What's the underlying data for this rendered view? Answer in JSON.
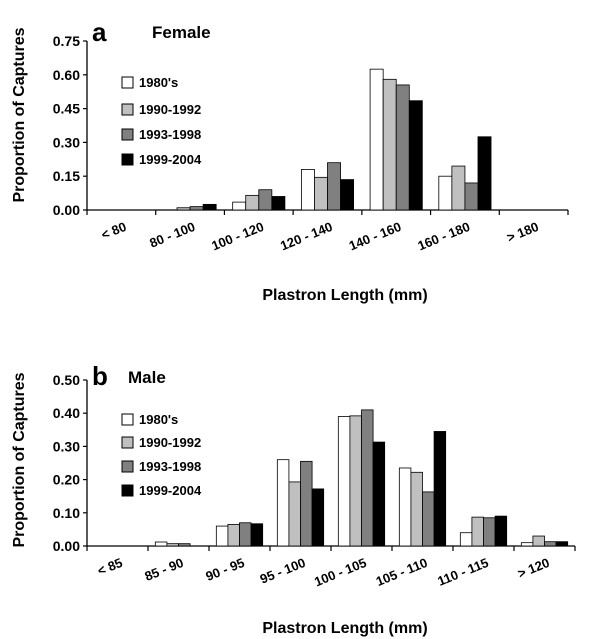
{
  "colors": {
    "1980s": "#ffffff",
    "1990-1992": "#c0c0c0",
    "1993-1998": "#808080",
    "1999-2004": "#000000"
  },
  "chart_data": [
    {
      "type": "bar",
      "panel": "a",
      "title": "Female",
      "xlabel": "Plastron Length (mm)",
      "ylabel": "Proportion of Captures",
      "ylim": [
        0,
        0.75
      ],
      "yticks": [
        "0.00",
        "0.15",
        "0.30",
        "0.45",
        "0.60",
        "0.75"
      ],
      "categories": [
        "< 80",
        "80 - 100",
        "100 - 120",
        "120 - 140",
        "140 - 160",
        "160 - 180",
        "> 180"
      ],
      "legend_position": "top-left",
      "series": [
        {
          "name": "1980's",
          "values": [
            0,
            0,
            0.035,
            0.18,
            0.625,
            0.15,
            0
          ]
        },
        {
          "name": "1990-1992",
          "values": [
            0,
            0.01,
            0.065,
            0.145,
            0.58,
            0.195,
            0
          ]
        },
        {
          "name": "1993-1998",
          "values": [
            0,
            0.015,
            0.09,
            0.21,
            0.555,
            0.12,
            0
          ]
        },
        {
          "name": "1999-2004",
          "values": [
            0,
            0.025,
            0.06,
            0.135,
            0.485,
            0.325,
            0
          ]
        }
      ]
    },
    {
      "type": "bar",
      "panel": "b",
      "title": "Male",
      "xlabel": "Plastron Length (mm)",
      "ylabel": "Proportion of Captures",
      "ylim": [
        0,
        0.5
      ],
      "yticks": [
        "0.00",
        "0.10",
        "0.20",
        "0.30",
        "0.40",
        "0.50"
      ],
      "categories": [
        "< 85",
        "85 - 90",
        "90 - 95",
        "95 - 100",
        "100 - 105",
        "105 - 110",
        "110 - 115",
        "> 120"
      ],
      "legend_position": "top-left",
      "series": [
        {
          "name": "1980's",
          "values": [
            0,
            0.012,
            0.06,
            0.26,
            0.39,
            0.235,
            0.04,
            0.01
          ]
        },
        {
          "name": "1990-1992",
          "values": [
            0,
            0.007,
            0.065,
            0.193,
            0.392,
            0.222,
            0.087,
            0.03
          ]
        },
        {
          "name": "1993-1998",
          "values": [
            0,
            0.007,
            0.07,
            0.255,
            0.41,
            0.163,
            0.085,
            0.013
          ]
        },
        {
          "name": "1999-2004",
          "values": [
            0,
            0,
            0.067,
            0.172,
            0.313,
            0.345,
            0.09,
            0.013
          ]
        }
      ]
    }
  ]
}
